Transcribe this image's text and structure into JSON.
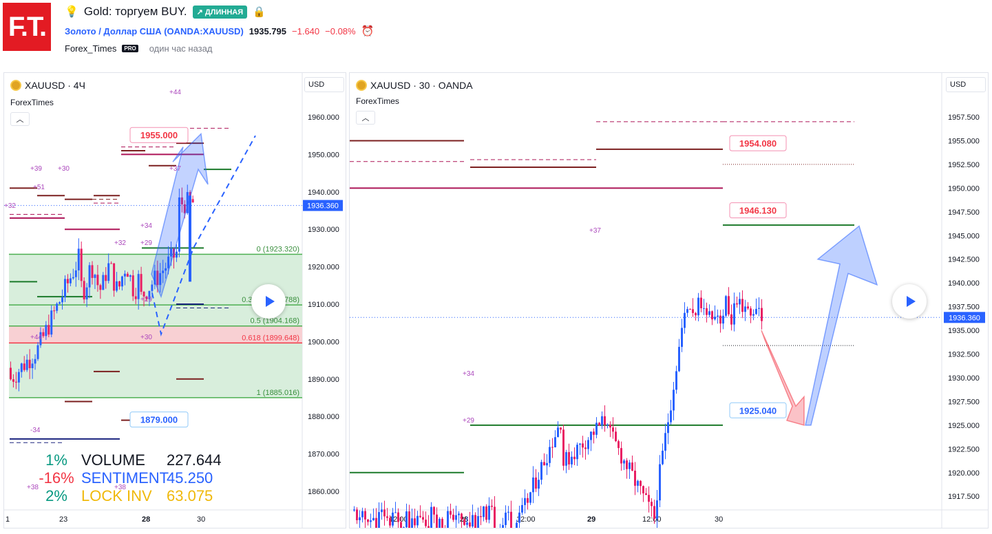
{
  "header": {
    "logo_text": "F.T.",
    "title": "Gold: торгуем BUY.",
    "badge": "↗ ДЛИННАЯ",
    "symbol_link": "Золото / Доллар США (OANDA:XAUUSD)",
    "price": "1935.795",
    "change": "−1.640",
    "change_pct": "−0.08%",
    "author": "Forex_Times",
    "author_badge": "PRO",
    "published": "один час назад"
  },
  "left_chart": {
    "title": "XAUUSD · 4Ч",
    "source": "ForexTimes",
    "currency": "USD",
    "price_ticks": [
      "1960.000",
      "1950.000",
      "1940.000",
      "1930.000",
      "1920.000",
      "1910.000",
      "1900.000",
      "1890.000",
      "1880.000",
      "1870.000",
      "1860.000"
    ],
    "current_price": "1936.360",
    "time_ticks": [
      "1",
      "23",
      "28",
      "30"
    ],
    "fib_labels": [
      "0 (1923.320)",
      "0.382 (1909.788)",
      "0.5 (1904.168)",
      "0.618 (1899.648)",
      "1 (1885.016)"
    ],
    "callouts": [
      "1955.000",
      "1879.000"
    ],
    "annotations": [
      "+44",
      "+39",
      "+30",
      "+51",
      "+32",
      "+34",
      "+32",
      "+29",
      "+37",
      "+29",
      "+30",
      "+44",
      "-34",
      "+38",
      "+38"
    ],
    "stats": {
      "rows": [
        {
          "pct": "1%",
          "label": "VOLUME",
          "value": "227.644",
          "color": "#089981"
        },
        {
          "pct": "-16%",
          "label": "SENTIMENT",
          "value": "45.250",
          "color": "#f23645"
        },
        {
          "pct": "2%",
          "label": "LOCK INV",
          "value": "63.075",
          "color": "#089981"
        }
      ]
    }
  },
  "right_chart": {
    "title": "XAUUSD · 30 · OANDA",
    "source": "ForexTimes",
    "currency": "USD",
    "price_ticks": [
      "1957.500",
      "1955.000",
      "1952.500",
      "1950.000",
      "1947.500",
      "1945.000",
      "1942.500",
      "1940.000",
      "1937.500",
      "1935.000",
      "1932.500",
      "1930.000",
      "1927.500",
      "1925.000",
      "1922.500",
      "1920.000",
      "1917.500"
    ],
    "current_price": "1936.360",
    "time_ticks": [
      "12:00",
      "28",
      "12:00",
      "29",
      "12:00",
      "30"
    ],
    "callouts": [
      "1954.080",
      "1946.130",
      "1925.040"
    ],
    "annotations": [
      "+37",
      "+34",
      "+29"
    ]
  },
  "colors": {
    "up": "#2962ff",
    "down": "#e91e63",
    "fib_fill": "#d8eedc",
    "fib_red": "#f8d0d3",
    "accent": "#2962ff"
  }
}
